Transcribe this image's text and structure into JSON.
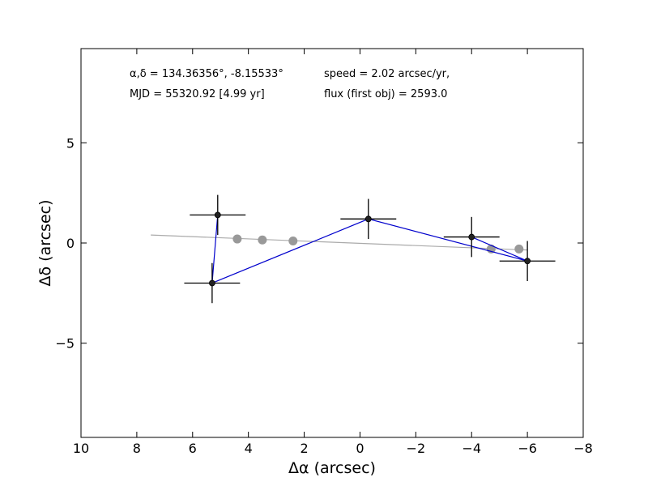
{
  "chart_data": {
    "type": "scatter",
    "title": "",
    "xlabel": "Δα (arcsec)",
    "ylabel": "Δδ (arcsec)",
    "xlim": [
      10,
      -8
    ],
    "ylim": [
      -9.7,
      9.7
    ],
    "x_ticks": [
      {
        "value": 10,
        "label": "10"
      },
      {
        "value": 8,
        "label": "8"
      },
      {
        "value": 6,
        "label": "6"
      },
      {
        "value": 4,
        "label": "4"
      },
      {
        "value": 2,
        "label": "2"
      },
      {
        "value": 0,
        "label": "0"
      },
      {
        "value": -2,
        "label": "−2"
      },
      {
        "value": -4,
        "label": "−4"
      },
      {
        "value": -6,
        "label": "−6"
      },
      {
        "value": -8,
        "label": "−8"
      }
    ],
    "y_ticks": [
      {
        "value": 5,
        "label": "5"
      },
      {
        "value": 0,
        "label": "0"
      },
      {
        "value": -5,
        "label": "−5"
      }
    ],
    "grid": false,
    "annotations": [
      "α,δ = 134.36356°, -8.15533°",
      "speed = 2.02 arcsec/yr,",
      "MJD = 55320.92 [4.99 yr]",
      "flux (first obj) = 2593.0"
    ],
    "series": [
      {
        "color": "#0000cc",
        "marker_color": "#222222",
        "points": [
          {
            "x": 5.1,
            "y": 1.4,
            "xerr": 1.0,
            "yerr": 1.0
          },
          {
            "x": 5.3,
            "y": -2.0,
            "xerr": 1.0,
            "yerr": 1.0
          },
          {
            "x": -0.3,
            "y": 1.2,
            "xerr": 1.0,
            "yerr": 1.0
          },
          {
            "x": -6.0,
            "y": -0.9,
            "xerr": 1.0,
            "yerr": 1.0
          },
          {
            "x": -4.0,
            "y": 0.3,
            "xerr": 1.0,
            "yerr": 1.0
          }
        ],
        "connect_order": [
          0,
          1,
          2,
          3,
          4
        ]
      },
      {
        "color": "#999999",
        "points": [
          {
            "x": 4.4,
            "y": 0.2
          },
          {
            "x": 3.5,
            "y": 0.15
          },
          {
            "x": 2.4,
            "y": 0.1
          },
          {
            "x": -4.7,
            "y": -0.3
          },
          {
            "x": -5.7,
            "y": -0.3
          }
        ]
      }
    ],
    "fit_line": {
      "color": "#aaaaaa",
      "x": [
        7.5,
        -6.0
      ],
      "y": [
        0.4,
        -0.35
      ]
    }
  }
}
